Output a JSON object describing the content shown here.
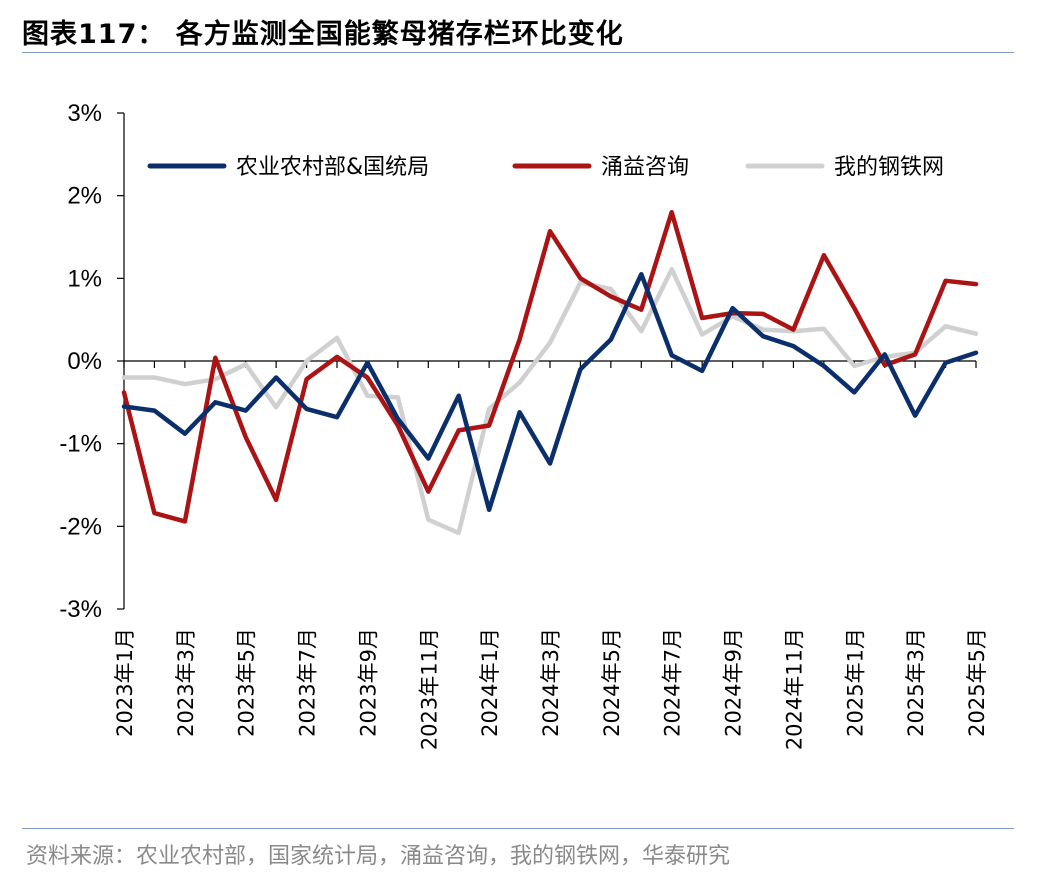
{
  "title": "图表117： 各方监测全国能繁母猪存栏环比变化",
  "source": "资料来源：农业农村部，国家统计局，涌益咨询，我的钢铁网，华泰研究",
  "chart_data": {
    "type": "line",
    "title": "图表117： 各方监测全国能繁母猪存栏环比变化",
    "ylim": [
      -3,
      3
    ],
    "y_ticks": [
      "3%",
      "2%",
      "1%",
      "0%",
      "-1%",
      "-2%",
      "-3%"
    ],
    "y_tick_values": [
      3,
      2,
      1,
      0,
      -1,
      -2,
      -3
    ],
    "x": [
      "2023年1月",
      "2023年2月",
      "2023年3月",
      "2023年4月",
      "2023年5月",
      "2023年6月",
      "2023年7月",
      "2023年8月",
      "2023年9月",
      "2023年10月",
      "2023年11月",
      "2023年12月",
      "2024年1月",
      "2024年2月",
      "2024年3月",
      "2024年4月",
      "2024年5月",
      "2024年6月",
      "2024年7月",
      "2024年8月",
      "2024年9月",
      "2024年10月",
      "2024年11月",
      "2024年12月",
      "2025年1月",
      "2025年2月",
      "2025年3月",
      "2025年4月",
      "2025年5月"
    ],
    "x_tick_labels": [
      "2023年1月",
      "2023年3月",
      "2023年5月",
      "2023年7月",
      "2023年9月",
      "2023年11月",
      "2024年1月",
      "2024年3月",
      "2024年5月",
      "2024年7月",
      "2024年9月",
      "2024年11月",
      "2025年1月",
      "2025年3月",
      "2025年5月"
    ],
    "legend_position": "top",
    "grid": false,
    "series": [
      {
        "name": "农业农村部&国统局",
        "color": "#0b2f6b",
        "values": [
          -0.55,
          -0.6,
          -0.88,
          -0.5,
          -0.6,
          -0.2,
          -0.58,
          -0.68,
          -0.02,
          -0.7,
          -1.18,
          -0.42,
          -1.8,
          -0.62,
          -1.24,
          -0.1,
          0.26,
          1.05,
          0.07,
          -0.12,
          0.64,
          0.3,
          0.18,
          -0.06,
          -0.38,
          0.08,
          -0.66,
          -0.02,
          0.1
        ]
      },
      {
        "name": "涌益咨询",
        "color": "#aa1414",
        "values": [
          -0.38,
          -1.84,
          -1.94,
          0.04,
          -0.92,
          -1.68,
          -0.22,
          0.05,
          -0.2,
          -0.78,
          -1.58,
          -0.84,
          -0.78,
          0.26,
          1.57,
          1.0,
          0.78,
          0.62,
          1.8,
          0.52,
          0.58,
          0.57,
          0.38,
          1.28,
          0.64,
          -0.05,
          0.08,
          0.97,
          0.93
        ]
      },
      {
        "name": "我的钢铁网",
        "color": "#d0d0d0",
        "values": [
          -0.2,
          -0.2,
          -0.28,
          -0.22,
          -0.04,
          -0.56,
          0.0,
          0.28,
          -0.42,
          -0.44,
          -1.92,
          -2.08,
          -0.58,
          -0.26,
          0.22,
          0.95,
          0.87,
          0.36,
          1.11,
          0.32,
          0.54,
          0.38,
          0.36,
          0.39,
          -0.06,
          0.05,
          0.1,
          0.42,
          0.33
        ]
      }
    ]
  }
}
